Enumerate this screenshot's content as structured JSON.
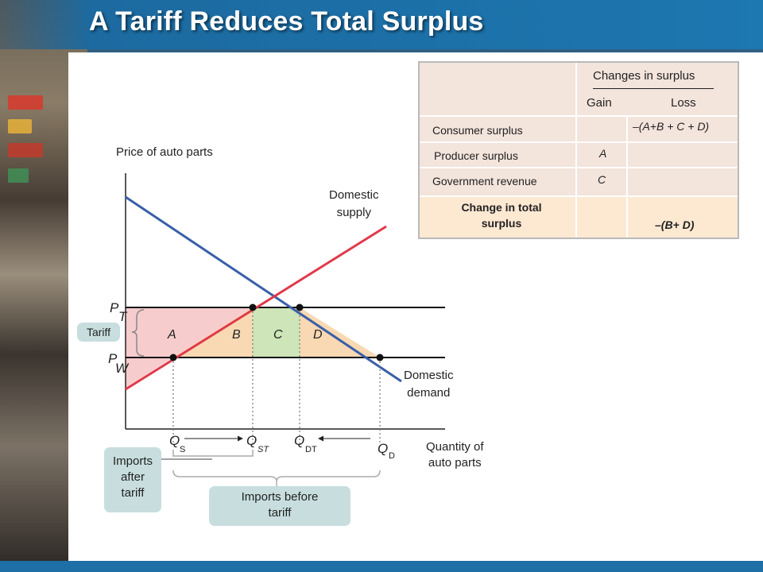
{
  "title": "A Tariff Reduces Total Surplus",
  "axes": {
    "y_label": "Price of auto parts",
    "x_label_line1": "Quantity of",
    "x_label_line2": "auto parts"
  },
  "curves": {
    "supply_line1": "Domestic",
    "supply_line2": "supply",
    "demand_line1": "Domestic",
    "demand_line2": "demand",
    "supply_color": "#e0394a",
    "demand_color": "#3a5fa8"
  },
  "prices": {
    "pt_main": "P",
    "pt_sub": "T",
    "pw_main": "P",
    "pw_sub": "W"
  },
  "tariff_label": "Tariff",
  "regions": {
    "a": "A",
    "b": "B",
    "c": "C",
    "d": "D",
    "a_color": "#f6cccc",
    "bd_color": "#f8d9b3",
    "c_color": "#cde5b8"
  },
  "quantities": {
    "qs_main": "Q",
    "qs_sub": "S",
    "qst_main": "Q",
    "qst_sub": "ST",
    "qdt_main": "Q",
    "qdt_sub": "DT",
    "qd_main": "Q",
    "qd_sub": "D"
  },
  "imports": {
    "after_line1": "Imports",
    "after_line2": "after",
    "after_line3": "tariff",
    "before_line1": "Imports before",
    "before_line2": "tariff"
  },
  "surplus_table": {
    "header": "Changes in surplus",
    "col_gain": "Gain",
    "col_loss": "Loss",
    "rows": [
      {
        "label": "Consumer surplus",
        "gain": "",
        "loss": "–(A+B + C + D)"
      },
      {
        "label": "Producer surplus",
        "gain": "A",
        "loss": ""
      },
      {
        "label": "Government revenue",
        "gain": "C",
        "loss": ""
      }
    ],
    "total_line1": "Change in total",
    "total_line2": "surplus",
    "total_loss": "–(B+ D)",
    "highlight_color": "#fde8d2"
  }
}
